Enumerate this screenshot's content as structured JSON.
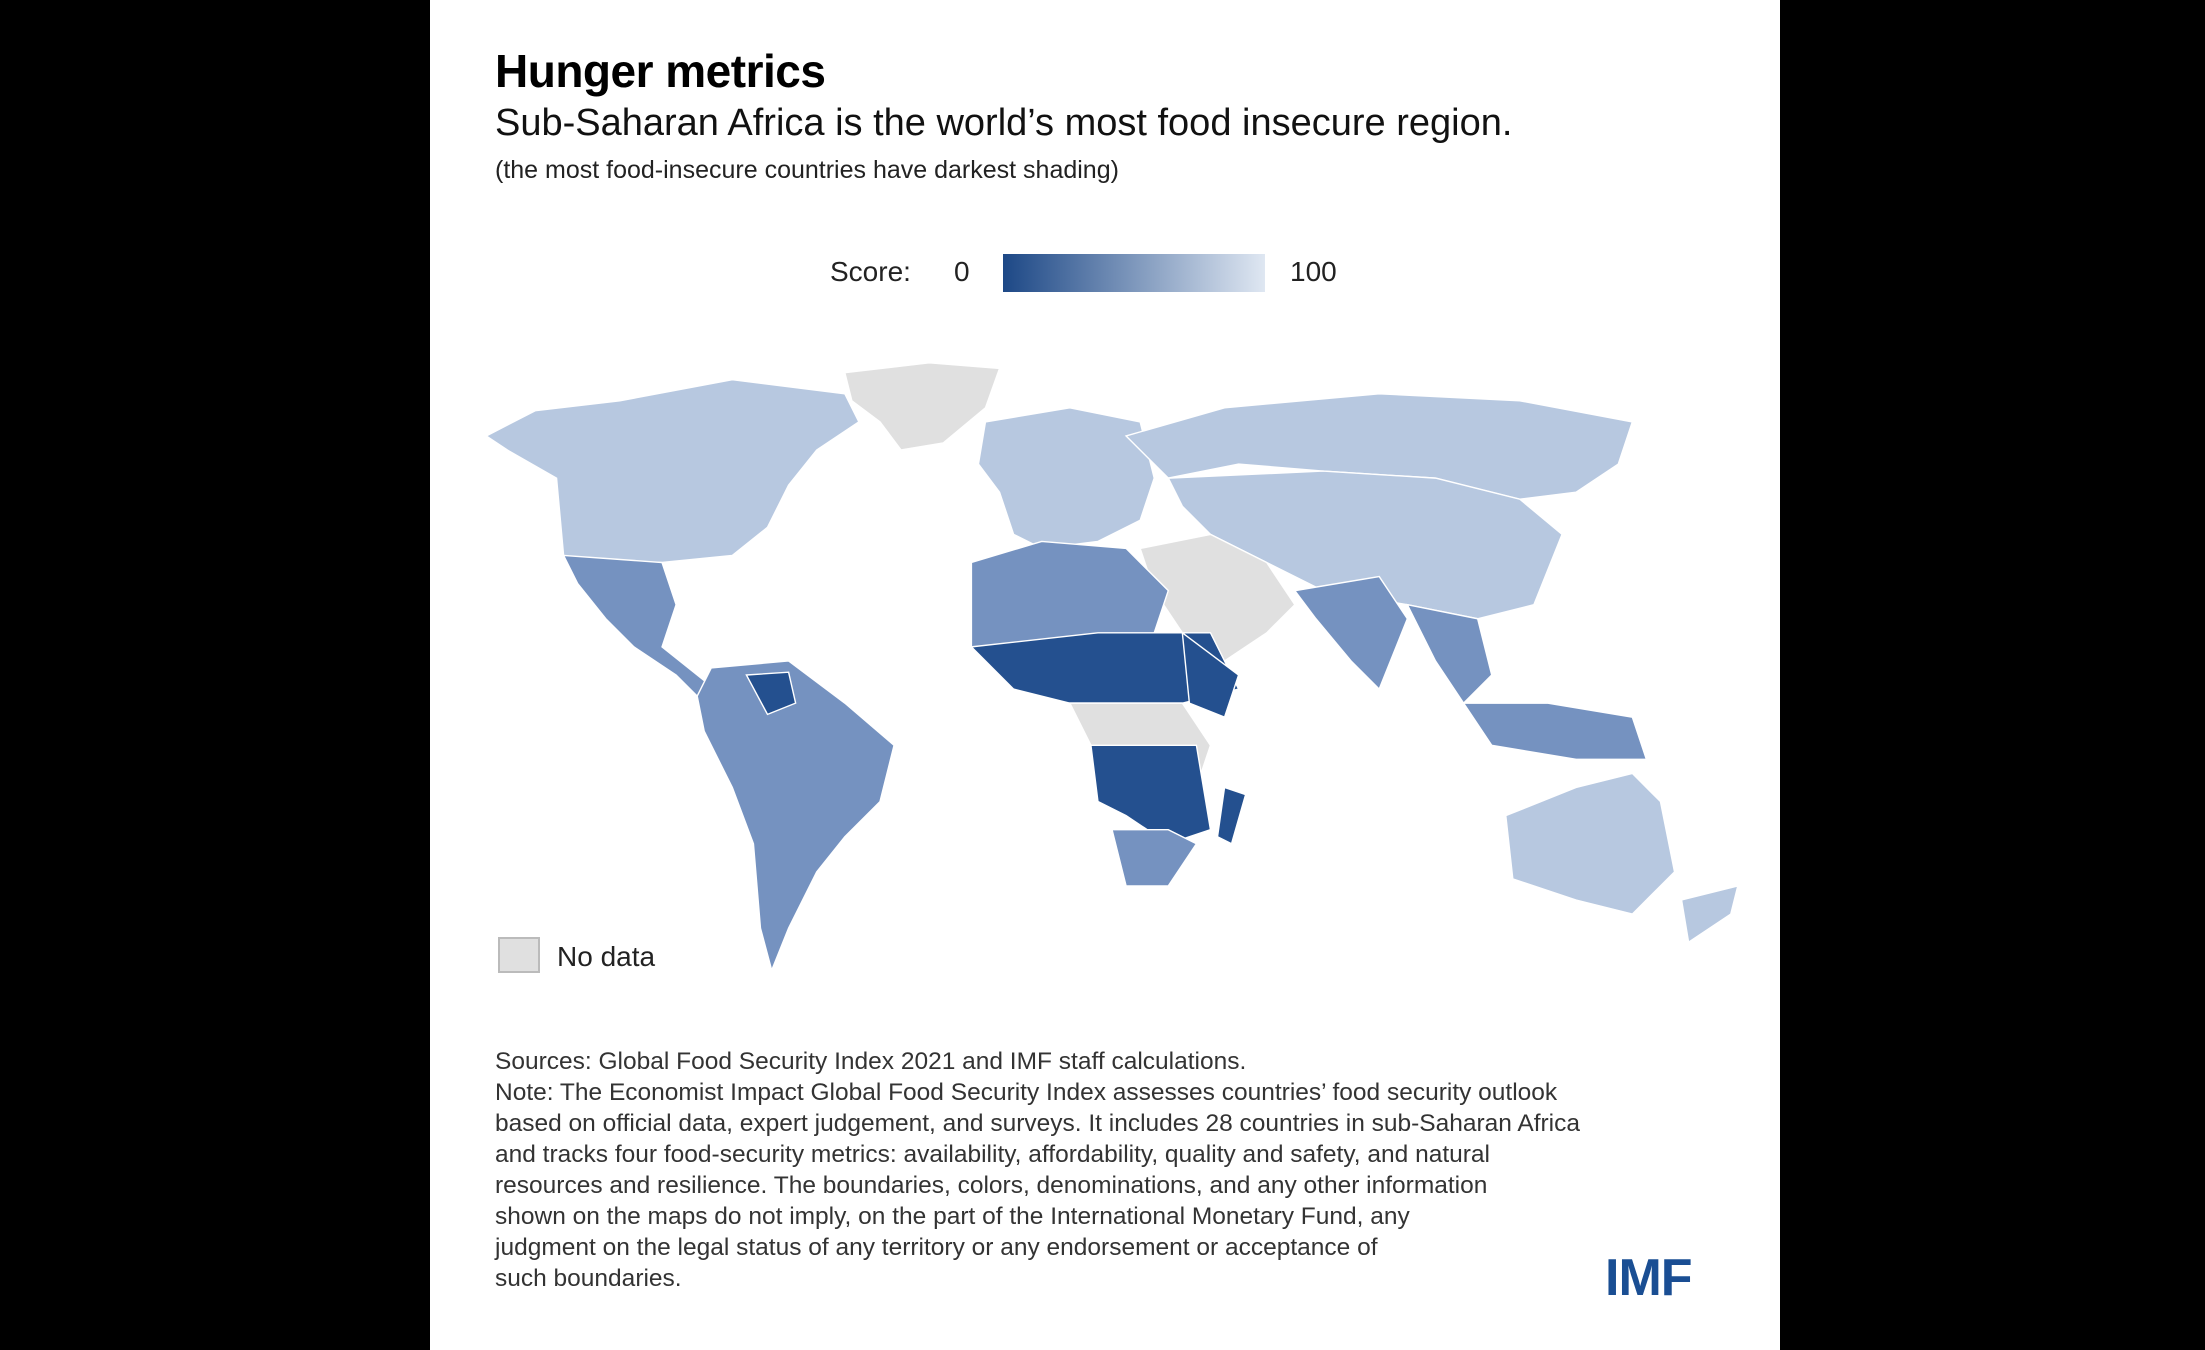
{
  "title": "Hunger metrics",
  "subtitle": "Sub-Saharan Africa is the world’s most food insecure region.",
  "subnote": "(the most food-insecure countries have darkest shading)",
  "legend": {
    "label": "Score:",
    "min": "0",
    "max": "100",
    "nodata": "No data",
    "colors": {
      "low": "#1d4886",
      "high": "#dfe7f2",
      "nodata": "#e0e0e0"
    }
  },
  "map": {
    "palette": {
      "dark": "#24508f",
      "mid": "#7592c0",
      "light": "#b7c8e0",
      "nodata": "#e0e0e0",
      "border": "#ffffff"
    }
  },
  "footer": {
    "lines": [
      "Sources: Global Food Security Index 2021 and IMF staff calculations.",
      "Note: The Economist Impact Global Food Security Index assesses countries’ food security outlook",
      "based on official data, expert judgement, and surveys. It includes 28 countries in sub-Saharan Africa",
      "and tracks four food-security metrics: availability, affordability, quality and safety, and natural",
      "resources and resilience. The boundaries, colors, denominations, and any other information",
      "shown on the maps do not imply, on the part of the International Monetary Fund, any",
      "judgment on the legal status of any territory or any endorsement or acceptance of",
      "such boundaries."
    ]
  },
  "logo": "IMF"
}
